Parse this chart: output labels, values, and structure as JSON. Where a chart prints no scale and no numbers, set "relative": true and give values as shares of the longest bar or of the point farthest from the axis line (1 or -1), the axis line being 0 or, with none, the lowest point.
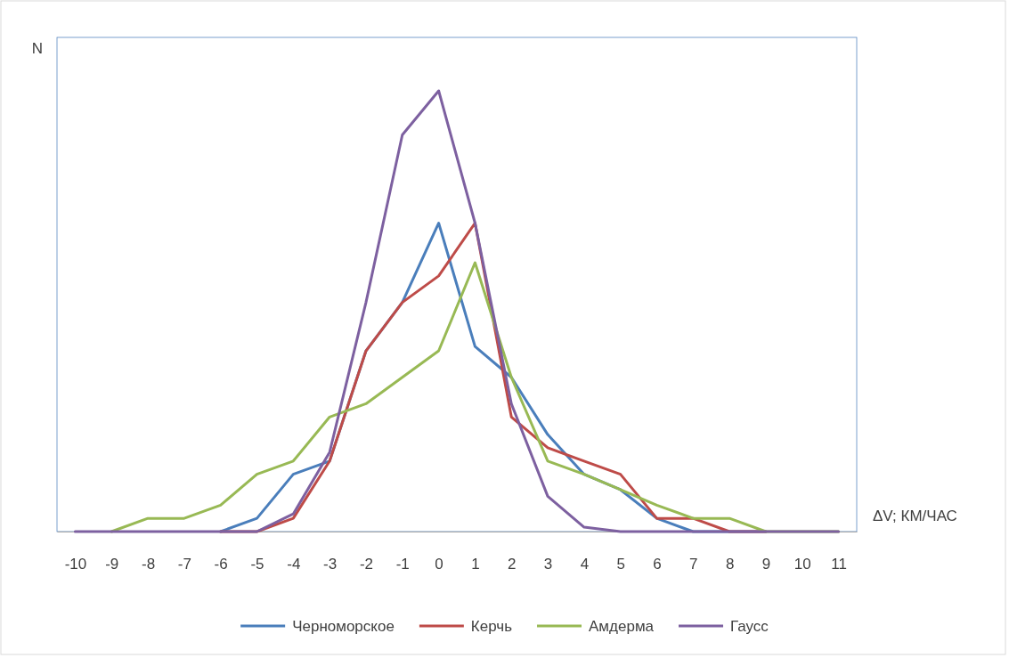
{
  "chart_data": {
    "type": "line",
    "relative": true,
    "xlabel": "ΔV; КМ/ЧАС",
    "ylabel": "N",
    "legend": "bottom",
    "categories": [
      "-10",
      "-9",
      "-8",
      "-7",
      "-6",
      "-5",
      "-4",
      "-3",
      "-2",
      "-1",
      "0",
      "1",
      "2",
      "3",
      "4",
      "5",
      "6",
      "7",
      "8",
      "9",
      "10",
      "11"
    ],
    "series": [
      {
        "name": "Черноморское",
        "color": "#4a7ebb",
        "values": [
          null,
          null,
          null,
          null,
          0,
          0.03,
          0.13,
          0.16,
          0.41,
          0.52,
          0.7,
          0.42,
          0.35,
          0.22,
          0.13,
          0.095,
          0.03,
          0,
          0,
          0,
          null,
          null
        ]
      },
      {
        "name": "Керчь",
        "color": "#be4b48",
        "values": [
          null,
          null,
          null,
          null,
          0,
          0,
          0.03,
          0.16,
          0.41,
          0.52,
          0.58,
          0.7,
          0.26,
          0.19,
          0.16,
          0.13,
          0.03,
          0.03,
          0,
          0,
          null,
          null
        ]
      },
      {
        "name": "Амдерма",
        "color": "#98b954",
        "values": [
          null,
          0,
          0.03,
          0.03,
          0.06,
          0.13,
          0.16,
          0.26,
          0.29,
          0.35,
          0.41,
          0.61,
          0.35,
          0.16,
          0.13,
          0.095,
          0.06,
          0.03,
          0.03,
          0,
          0,
          0
        ]
      },
      {
        "name": "Гаусс",
        "color": "#7d60a0",
        "values": [
          0,
          0,
          0,
          0,
          0,
          0,
          0.04,
          0.18,
          0.52,
          0.9,
          1,
          0.7,
          0.29,
          0.08,
          0.01,
          0,
          0,
          0,
          0,
          0,
          0,
          0
        ]
      }
    ]
  }
}
